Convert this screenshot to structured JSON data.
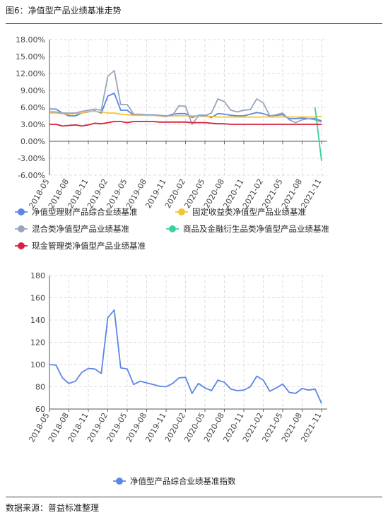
{
  "figure": {
    "title": "图6：净值型产品业绩基准走势",
    "source": "数据来源：普益标准整理"
  },
  "chart_data": [
    {
      "type": "line",
      "x": [
        "2018-05",
        "2018-06",
        "2018-07",
        "2018-08",
        "2018-09",
        "2018-10",
        "2018-11",
        "2018-12",
        "2019-01",
        "2019-02",
        "2019-03",
        "2019-04",
        "2019-05",
        "2019-06",
        "2019-07",
        "2019-08",
        "2019-09",
        "2019-10",
        "2019-11",
        "2019-12",
        "2020-01",
        "2020-02",
        "2020-03",
        "2020-04",
        "2020-05",
        "2020-06",
        "2020-07",
        "2020-08",
        "2020-09",
        "2020-10",
        "2020-11",
        "2020-12",
        "2021-01",
        "2021-02",
        "2021-03",
        "2021-04",
        "2021-05",
        "2021-06",
        "2021-07",
        "2021-08",
        "2021-09",
        "2021-10",
        "2021-11"
      ],
      "x_ticks": [
        "2018-05",
        "2018-08",
        "2018-11",
        "2019-02",
        "2019-05",
        "2019-08",
        "2019-11",
        "2020-02",
        "2020-05",
        "2020-08",
        "2020-11",
        "2021-02",
        "2021-05",
        "2021-08",
        "2021-11"
      ],
      "y_ticks": [
        "18.00%",
        "15.00%",
        "12.00%",
        "9.00%",
        "6.00%",
        "3.00%",
        "0.00%",
        "-3.00%",
        "-6.00%"
      ],
      "ylim": [
        -6,
        18
      ],
      "grid": true,
      "legend_position": "bottom",
      "series": [
        {
          "name": "净值型理财产品综合业绩基准",
          "color": "#5b86e5",
          "values": [
            5.7,
            5.7,
            5.0,
            4.5,
            4.5,
            5.0,
            5.2,
            5.4,
            5.0,
            8.0,
            8.5,
            5.5,
            5.5,
            4.6,
            4.7,
            4.6,
            4.6,
            4.5,
            4.4,
            4.8,
            4.9,
            4.9,
            4.2,
            4.6,
            4.6,
            4.2,
            4.9,
            4.8,
            4.6,
            4.5,
            4.5,
            4.8,
            5.1,
            4.9,
            4.5,
            4.6,
            4.7,
            4.0,
            4.0,
            4.1,
            4.0,
            4.0,
            3.6
          ]
        },
        {
          "name": "固定收益类净值型产品业绩基准",
          "color": "#f5c330",
          "values": [
            5.0,
            5.0,
            4.9,
            4.8,
            4.9,
            5.0,
            5.3,
            5.3,
            5.2,
            5.0,
            5.0,
            4.8,
            4.7,
            4.6,
            4.6,
            4.6,
            4.6,
            4.5,
            4.5,
            4.5,
            4.5,
            4.5,
            4.5,
            4.5,
            4.4,
            4.4,
            4.3,
            4.3,
            4.3,
            4.3,
            4.3,
            4.3,
            4.3,
            4.3,
            4.3,
            4.3,
            4.3,
            4.3,
            4.3,
            4.3,
            4.3,
            4.3,
            4.4
          ]
        },
        {
          "name": "混合类净值型产品业绩基准",
          "color": "#9aa4bd",
          "values": [
            5.2,
            5.2,
            5.0,
            5.0,
            5.0,
            5.3,
            5.5,
            5.7,
            5.5,
            11.5,
            12.5,
            6.5,
            6.5,
            4.8,
            4.8,
            4.7,
            4.7,
            4.6,
            4.5,
            4.6,
            6.3,
            6.2,
            3.0,
            4.5,
            4.5,
            5.0,
            7.5,
            7.0,
            5.5,
            5.2,
            5.5,
            5.6,
            7.5,
            6.8,
            4.5,
            4.7,
            5.0,
            3.8,
            3.3,
            3.8,
            4.0,
            3.8,
            3.4
          ]
        },
        {
          "name": "商品及金融衍生品类净值型产品业绩基准",
          "color": "#3ecf9a",
          "values": [
            null,
            null,
            null,
            null,
            null,
            null,
            null,
            null,
            null,
            null,
            null,
            null,
            null,
            null,
            null,
            null,
            null,
            null,
            null,
            null,
            null,
            null,
            null,
            null,
            null,
            null,
            null,
            null,
            null,
            null,
            null,
            null,
            null,
            null,
            null,
            null,
            null,
            null,
            null,
            null,
            null,
            6.0,
            -3.5
          ]
        },
        {
          "name": "现金管理类净值型产品业绩基准",
          "color": "#d6213f",
          "values": [
            3.0,
            3.0,
            2.7,
            2.8,
            2.9,
            2.7,
            2.9,
            3.2,
            3.1,
            3.3,
            3.5,
            3.5,
            3.3,
            3.5,
            3.5,
            3.5,
            3.5,
            3.4,
            3.4,
            3.4,
            3.4,
            3.4,
            3.3,
            3.3,
            3.3,
            3.2,
            3.1,
            3.1,
            3.0,
            3.0,
            3.0,
            3.0,
            3.0,
            3.0,
            3.0,
            3.0,
            3.0,
            3.0,
            3.0,
            3.0,
            3.0,
            3.0,
            3.0
          ]
        }
      ]
    },
    {
      "type": "line",
      "x": [
        "2018-05",
        "2018-06",
        "2018-07",
        "2018-08",
        "2018-09",
        "2018-10",
        "2018-11",
        "2018-12",
        "2019-01",
        "2019-02",
        "2019-03",
        "2019-04",
        "2019-05",
        "2019-06",
        "2019-07",
        "2019-08",
        "2019-09",
        "2019-10",
        "2019-11",
        "2019-12",
        "2020-01",
        "2020-02",
        "2020-03",
        "2020-04",
        "2020-05",
        "2020-06",
        "2020-07",
        "2020-08",
        "2020-09",
        "2020-10",
        "2020-11",
        "2020-12",
        "2021-01",
        "2021-02",
        "2021-03",
        "2021-04",
        "2021-05",
        "2021-06",
        "2021-07",
        "2021-08",
        "2021-09",
        "2021-10",
        "2021-11"
      ],
      "x_ticks": [
        "2018-05",
        "2018-08",
        "2018-11",
        "2019-02",
        "2019-05",
        "2019-08",
        "2019-11",
        "2020-02",
        "2020-05",
        "2020-08",
        "2020-11",
        "2021-02",
        "2021-05",
        "2021-08",
        "2021-11"
      ],
      "y_ticks": [
        "180",
        "160",
        "140",
        "120",
        "100",
        "80",
        "60"
      ],
      "ylim": [
        60,
        180
      ],
      "grid": true,
      "legend_position": "bottom",
      "series": [
        {
          "name": "净值型产品综合业绩基准指数",
          "color": "#5b86e5",
          "values": [
            100,
            99.5,
            88,
            83,
            85,
            93,
            96.5,
            96,
            92,
            142,
            149,
            97,
            96,
            82,
            85,
            83.5,
            82,
            80.5,
            80,
            83,
            88,
            88.5,
            74,
            83,
            79,
            76.5,
            86,
            84,
            78,
            76.5,
            77,
            80,
            89.5,
            86,
            76,
            79,
            82.5,
            75,
            74,
            78.5,
            77,
            78,
            65
          ]
        }
      ]
    }
  ]
}
